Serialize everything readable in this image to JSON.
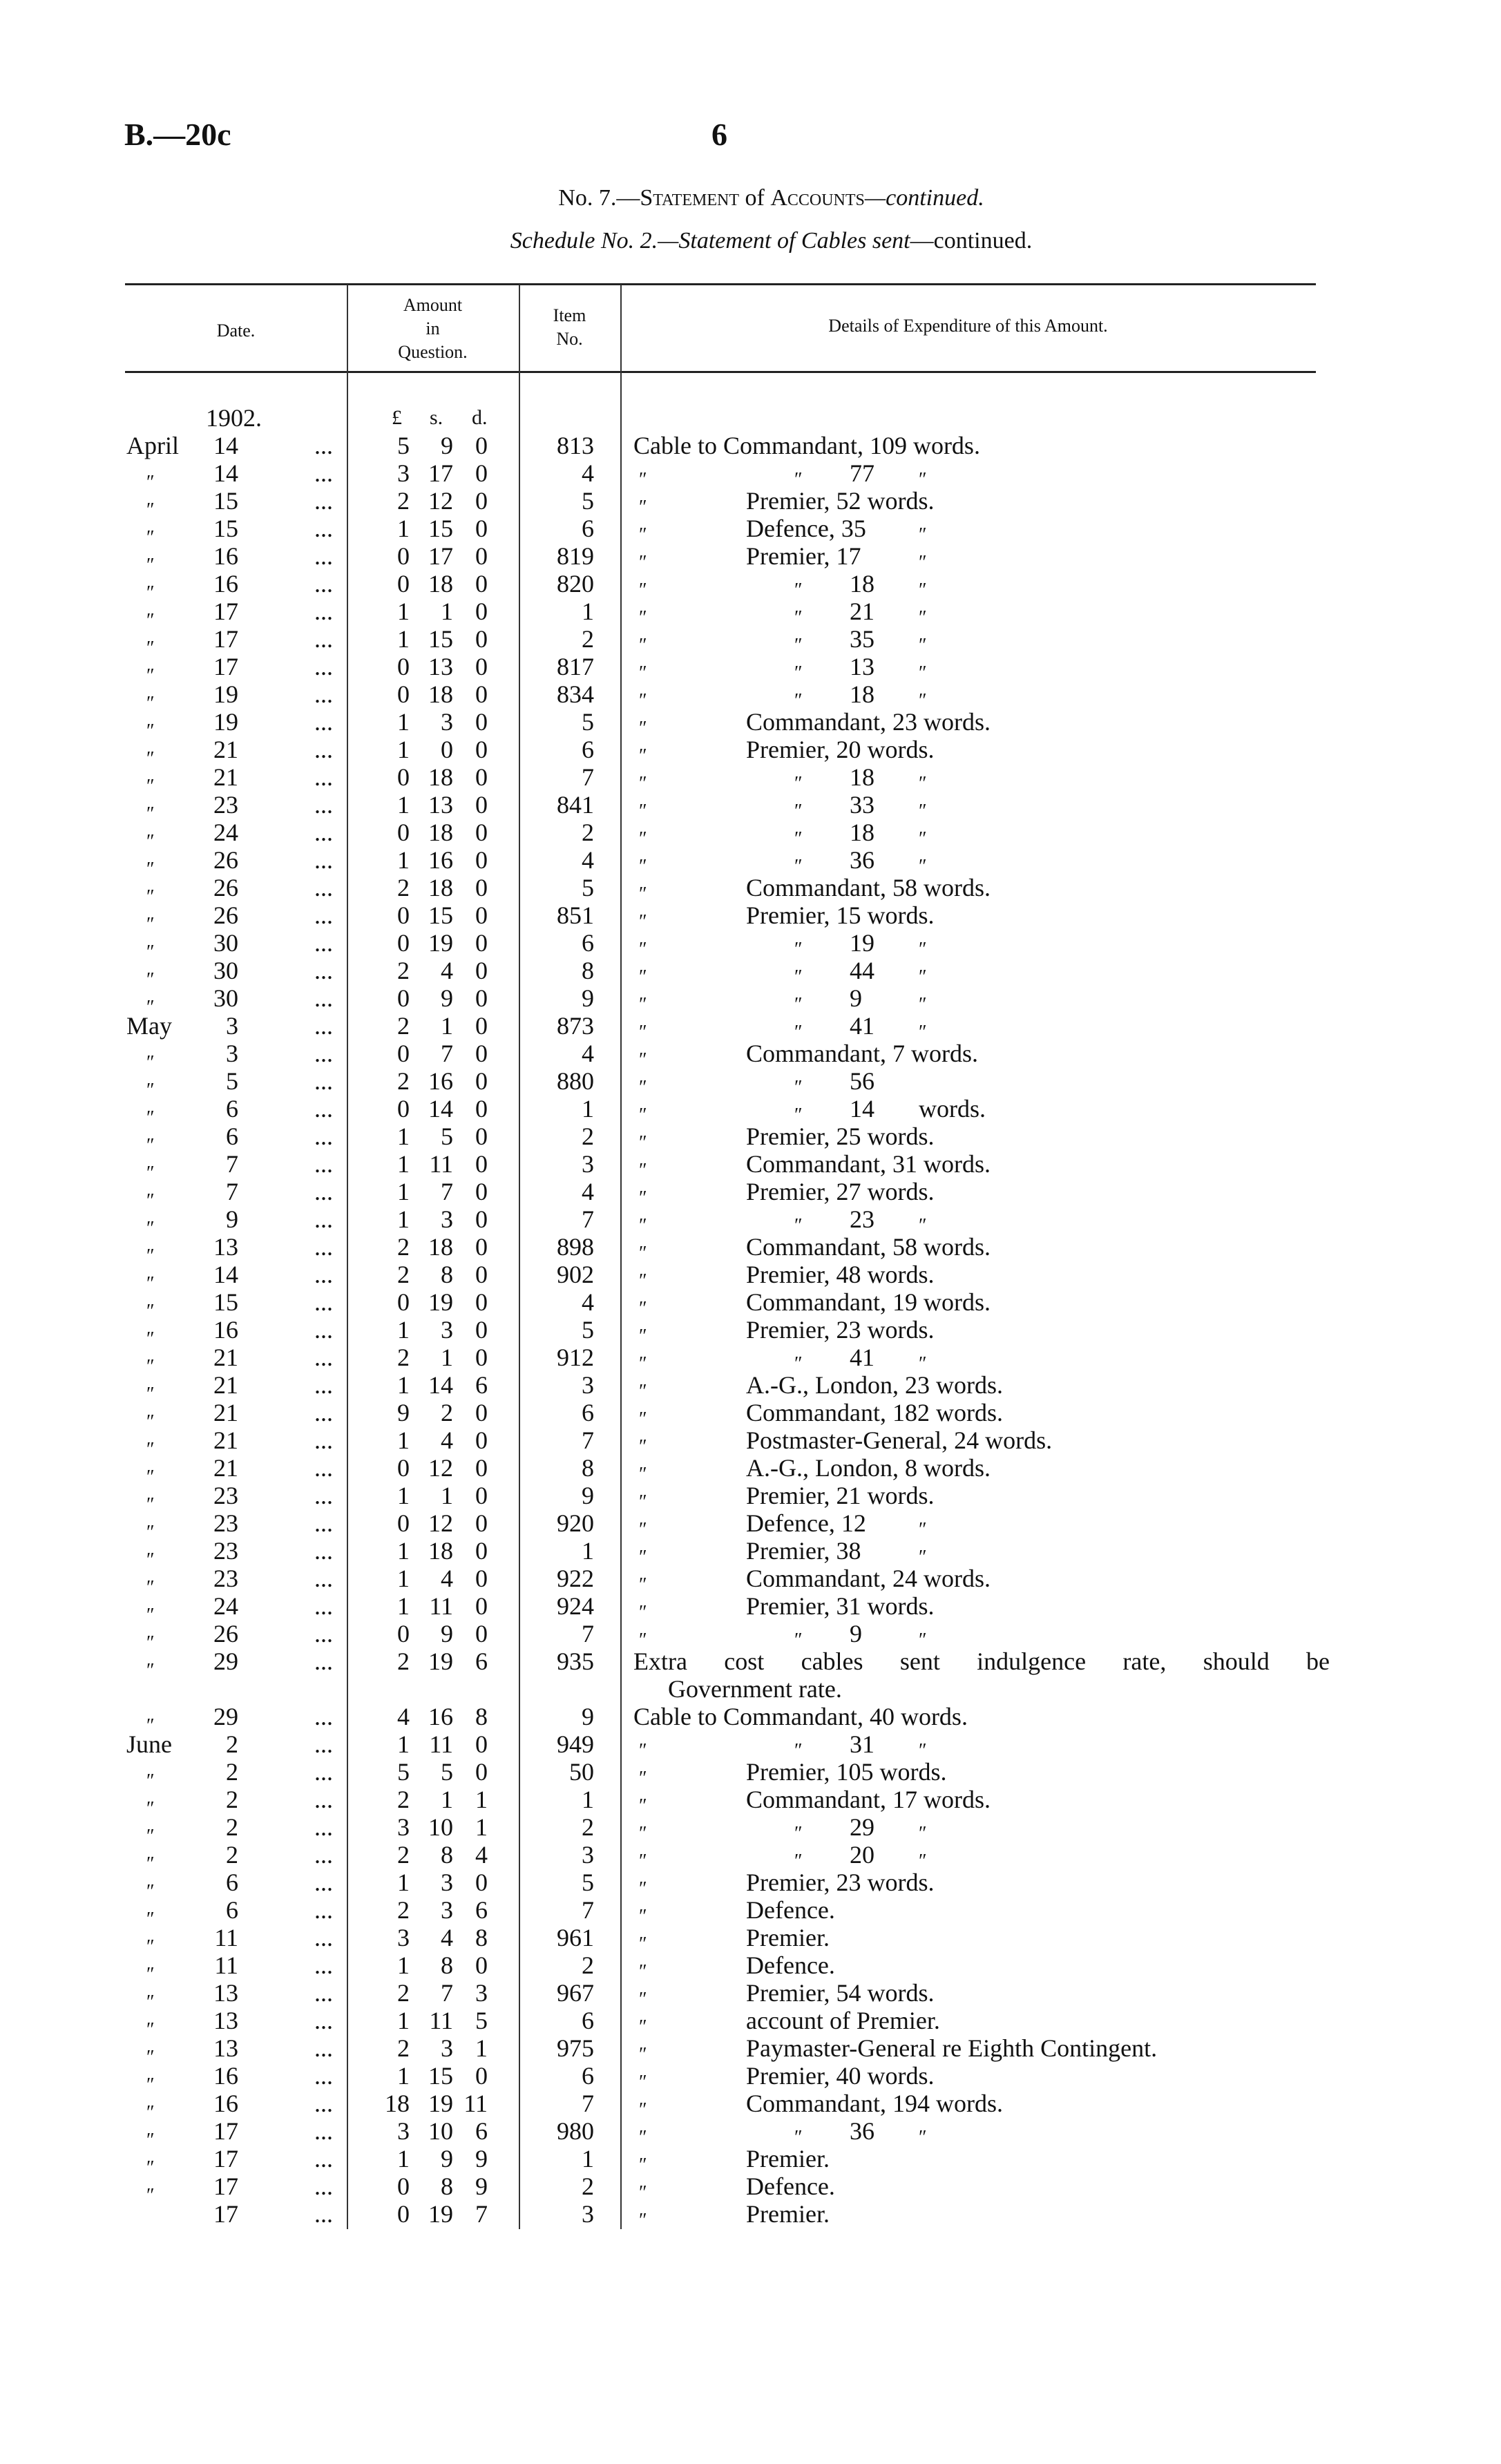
{
  "header": {
    "doc_code": "B.—20c",
    "page_number": "6",
    "title_prefix": "No. 7.—",
    "title_small_caps_1": "Statement",
    "title_of": " of ",
    "title_small_caps_2": "Accounts",
    "title_suffix": "—continued.",
    "subtitle_italic": "Schedule No. 2.—Statement of Cables sent",
    "subtitle_suffix": "—continued."
  },
  "columns": {
    "date": "Date.",
    "amount": [
      "Amount",
      "in",
      "Question."
    ],
    "item": [
      "Item",
      "No."
    ],
    "details": "Details of Expenditure of this Amount."
  },
  "subheader": {
    "year": "1902.",
    "pounds": "£",
    "shillings": "s.",
    "pence": "d."
  },
  "leader": "...",
  "ditto": "″",
  "rows": [
    {
      "month": "April",
      "day": "14",
      "l": "5",
      "s": "9",
      "d": "0",
      "item": "813",
      "full": "Cable to Commandant, 109 words."
    },
    {
      "month": "″",
      "day": "14",
      "l": "3",
      "s": "17",
      "d": "0",
      "item": "4",
      "q": "″",
      "q2": "″",
      "num": "77",
      "end": "″"
    },
    {
      "month": "″",
      "day": "15",
      "l": "2",
      "s": "12",
      "d": "0",
      "item": "5",
      "q": "″",
      "text": "Premier, 52 words."
    },
    {
      "month": "″",
      "day": "15",
      "l": "1",
      "s": "15",
      "d": "0",
      "item": "6",
      "q": "″",
      "text": "Defence, 35",
      "end": "″"
    },
    {
      "month": "″",
      "day": "16",
      "l": "0",
      "s": "17",
      "d": "0",
      "item": "819",
      "q": "″",
      "text": "Premier, 17",
      "end": "″"
    },
    {
      "month": "″",
      "day": "16",
      "l": "0",
      "s": "18",
      "d": "0",
      "item": "820",
      "q": "″",
      "q2": "″",
      "num": "18",
      "end": "″"
    },
    {
      "month": "″",
      "day": "17",
      "l": "1",
      "s": "1",
      "d": "0",
      "item": "1",
      "q": "″",
      "q2": "″",
      "num": "21",
      "end": "″"
    },
    {
      "month": "″",
      "day": "17",
      "l": "1",
      "s": "15",
      "d": "0",
      "item": "2",
      "q": "″",
      "q2": "″",
      "num": "35",
      "end": "″"
    },
    {
      "month": "″",
      "day": "17",
      "l": "0",
      "s": "13",
      "d": "0",
      "item": "817",
      "q": "″",
      "q2": "″",
      "num": "13",
      "end": "″"
    },
    {
      "month": "″",
      "day": "19",
      "l": "0",
      "s": "18",
      "d": "0",
      "item": "834",
      "q": "″",
      "q2": "″",
      "num": "18",
      "end": "″"
    },
    {
      "month": "″",
      "day": "19",
      "l": "1",
      "s": "3",
      "d": "0",
      "item": "5",
      "q": "″",
      "text": "Commandant, 23 words."
    },
    {
      "month": "″",
      "day": "21",
      "l": "1",
      "s": "0",
      "d": "0",
      "item": "6",
      "q": "″",
      "text": "Premier, 20 words."
    },
    {
      "month": "″",
      "day": "21",
      "l": "0",
      "s": "18",
      "d": "0",
      "item": "7",
      "q": "″",
      "q2": "″",
      "num": "18",
      "end": "″"
    },
    {
      "month": "″",
      "day": "23",
      "l": "1",
      "s": "13",
      "d": "0",
      "item": "841",
      "q": "″",
      "q2": "″",
      "num": "33",
      "end": "″"
    },
    {
      "month": "″",
      "day": "24",
      "l": "0",
      "s": "18",
      "d": "0",
      "item": "2",
      "q": "″",
      "q2": "″",
      "num": "18",
      "end": "″"
    },
    {
      "month": "″",
      "day": "26",
      "l": "1",
      "s": "16",
      "d": "0",
      "item": "4",
      "q": "″",
      "q2": "″",
      "num": "36",
      "end": "″"
    },
    {
      "month": "″",
      "day": "26",
      "l": "2",
      "s": "18",
      "d": "0",
      "item": "5",
      "q": "″",
      "text": "Commandant, 58 words."
    },
    {
      "month": "″",
      "day": "26",
      "l": "0",
      "s": "15",
      "d": "0",
      "item": "851",
      "q": "″",
      "text": "Premier, 15 words."
    },
    {
      "month": "″",
      "day": "30",
      "l": "0",
      "s": "19",
      "d": "0",
      "item": "6",
      "q": "″",
      "q2": "″",
      "num": "19",
      "end": "″"
    },
    {
      "month": "″",
      "day": "30",
      "l": "2",
      "s": "4",
      "d": "0",
      "item": "8",
      "q": "″",
      "q2": "″",
      "num": "44",
      "end": "″"
    },
    {
      "month": "″",
      "day": "30",
      "l": "0",
      "s": "9",
      "d": "0",
      "item": "9",
      "q": "″",
      "q2": "″",
      "num": "9",
      "end": "″"
    },
    {
      "month": "May",
      "day": "3",
      "l": "2",
      "s": "1",
      "d": "0",
      "item": "873",
      "q": "″",
      "q2": "″",
      "num": "41",
      "end": "″"
    },
    {
      "month": "″",
      "day": "3",
      "l": "0",
      "s": "7",
      "d": "0",
      "item": "4",
      "q": "″",
      "text": "Commandant, 7 words."
    },
    {
      "month": "″",
      "day": "5",
      "l": "2",
      "s": "16",
      "d": "0",
      "item": "880",
      "q": "″",
      "q2": "″",
      "num": "56"
    },
    {
      "month": "″",
      "day": "6",
      "l": "0",
      "s": "14",
      "d": "0",
      "item": "1",
      "q": "″",
      "q2": "″",
      "num": "14",
      "end": "words."
    },
    {
      "month": "″",
      "day": "6",
      "l": "1",
      "s": "5",
      "d": "0",
      "item": "2",
      "q": "″",
      "text": "Premier, 25 words."
    },
    {
      "month": "″",
      "day": "7",
      "l": "1",
      "s": "11",
      "d": "0",
      "item": "3",
      "q": "″",
      "text": "Commandant, 31 words."
    },
    {
      "month": "″",
      "day": "7",
      "l": "1",
      "s": "7",
      "d": "0",
      "item": "4",
      "q": "″",
      "text": "Premier, 27 words."
    },
    {
      "month": "″",
      "day": "9",
      "l": "1",
      "s": "3",
      "d": "0",
      "item": "7",
      "q": "″",
      "q2": "″",
      "num": "23",
      "end": "″"
    },
    {
      "month": "″",
      "day": "13",
      "l": "2",
      "s": "18",
      "d": "0",
      "item": "898",
      "q": "″",
      "text": "Commandant, 58 words."
    },
    {
      "month": "″",
      "day": "14",
      "l": "2",
      "s": "8",
      "d": "0",
      "item": "902",
      "q": "″",
      "text": "Premier, 48 words."
    },
    {
      "month": "″",
      "day": "15",
      "l": "0",
      "s": "19",
      "d": "0",
      "item": "4",
      "q": "″",
      "text": "Commandant, 19 words."
    },
    {
      "month": "″",
      "day": "16",
      "l": "1",
      "s": "3",
      "d": "0",
      "item": "5",
      "q": "″",
      "text": "Premier, 23 words."
    },
    {
      "month": "″",
      "day": "21",
      "l": "2",
      "s": "1",
      "d": "0",
      "item": "912",
      "q": "″",
      "q2": "″",
      "num": "41",
      "end": "″"
    },
    {
      "month": "″",
      "day": "21",
      "l": "1",
      "s": "14",
      "d": "6",
      "item": "3",
      "q": "″",
      "text": "A.-G., London, 23 words."
    },
    {
      "month": "″",
      "day": "21",
      "l": "9",
      "s": "2",
      "d": "0",
      "item": "6",
      "q": "″",
      "text": "Commandant, 182 words."
    },
    {
      "month": "″",
      "day": "21",
      "l": "1",
      "s": "4",
      "d": "0",
      "item": "7",
      "q": "″",
      "text": "Postmaster-General, 24 words."
    },
    {
      "month": "″",
      "day": "21",
      "l": "0",
      "s": "12",
      "d": "0",
      "item": "8",
      "q": "″",
      "text": "A.-G., London, 8 words."
    },
    {
      "month": "″",
      "day": "23",
      "l": "1",
      "s": "1",
      "d": "0",
      "item": "9",
      "q": "″",
      "text": "Premier, 21 words."
    },
    {
      "month": "″",
      "day": "23",
      "l": "0",
      "s": "12",
      "d": "0",
      "item": "920",
      "q": "″",
      "text": "Defence, 12",
      "end": "″"
    },
    {
      "month": "″",
      "day": "23",
      "l": "1",
      "s": "18",
      "d": "0",
      "item": "1",
      "q": "″",
      "text": "Premier, 38",
      "end": "″"
    },
    {
      "month": "″",
      "day": "23",
      "l": "1",
      "s": "4",
      "d": "0",
      "item": "922",
      "q": "″",
      "text": "Commandant, 24 words."
    },
    {
      "month": "″",
      "day": "24",
      "l": "1",
      "s": "11",
      "d": "0",
      "item": "924",
      "q": "″",
      "text": "Premier, 31 words."
    },
    {
      "month": "″",
      "day": "26",
      "l": "0",
      "s": "9",
      "d": "0",
      "item": "7",
      "q": "″",
      "q2": "″",
      "num": "9",
      "end": "″"
    },
    {
      "month": "″",
      "day": "29",
      "l": "2",
      "s": "19",
      "d": "6",
      "item": "935",
      "full": "Extra cost cables sent indulgence rate, should be",
      "cont": "Government rate."
    },
    {
      "month": "″",
      "day": "29",
      "l": "4",
      "s": "16",
      "d": "8",
      "item": "9",
      "full": "Cable to Commandant, 40 words."
    },
    {
      "month": "June",
      "day": "2",
      "l": "1",
      "s": "11",
      "d": "0",
      "item": "949",
      "q": "″",
      "q2": "″",
      "num": "31",
      "end": "″"
    },
    {
      "month": "″",
      "day": "2",
      "l": "5",
      "s": "5",
      "d": "0",
      "item": "50",
      "q": "″",
      "text": "Premier, 105 words."
    },
    {
      "month": "″",
      "day": "2",
      "l": "2",
      "s": "1",
      "d": "1",
      "item": "1",
      "q": "″",
      "text": "Commandant, 17 words."
    },
    {
      "month": "″",
      "day": "2",
      "l": "3",
      "s": "10",
      "d": "1",
      "item": "2",
      "q": "″",
      "q2": "″",
      "num": "29",
      "end": "″"
    },
    {
      "month": "″",
      "day": "2",
      "l": "2",
      "s": "8",
      "d": "4",
      "item": "3",
      "q": "″",
      "q2": "″",
      "num": "20",
      "end": "″"
    },
    {
      "month": "″",
      "day": "6",
      "l": "1",
      "s": "3",
      "d": "0",
      "item": "5",
      "q": "″",
      "text": "Premier, 23 words."
    },
    {
      "month": "″",
      "day": "6",
      "l": "2",
      "s": "3",
      "d": "6",
      "item": "7",
      "q": "″",
      "text": "Defence."
    },
    {
      "month": "″",
      "day": "11",
      "l": "3",
      "s": "4",
      "d": "8",
      "item": "961",
      "q": "″",
      "text": "Premier."
    },
    {
      "month": "″",
      "day": "11",
      "l": "1",
      "s": "8",
      "d": "0",
      "item": "2",
      "q": "″",
      "text": "Defence."
    },
    {
      "month": "″",
      "day": "13",
      "l": "2",
      "s": "7",
      "d": "3",
      "item": "967",
      "q": "″",
      "text": "Premier, 54 words."
    },
    {
      "month": "″",
      "day": "13",
      "l": "1",
      "s": "11",
      "d": "5",
      "item": "6",
      "q": "″",
      "text": "account of Premier."
    },
    {
      "month": "″",
      "day": "13",
      "l": "2",
      "s": "3",
      "d": "1",
      "item": "975",
      "q": "″",
      "text": "Paymaster-General re Eighth Contingent."
    },
    {
      "month": "″",
      "day": "16",
      "l": "1",
      "s": "15",
      "d": "0",
      "item": "6",
      "q": "″",
      "text": "Premier, 40 words."
    },
    {
      "month": "″",
      "day": "16",
      "l": "18",
      "s": "19",
      "d": "11",
      "item": "7",
      "q": "″",
      "text": "Commandant, 194 words."
    },
    {
      "month": "″",
      "day": "17",
      "l": "3",
      "s": "10",
      "d": "6",
      "item": "980",
      "q": "″",
      "q2": "″",
      "num": "36",
      "end": "″"
    },
    {
      "month": "″",
      "day": "17",
      "l": "1",
      "s": "9",
      "d": "9",
      "item": "1",
      "q": "″",
      "text": "Premier."
    },
    {
      "month": "″",
      "day": "17",
      "l": "0",
      "s": "8",
      "d": "9",
      "item": "2",
      "q": "″",
      "text": "Defence."
    },
    {
      "month": "",
      "day": "17",
      "l": "0",
      "s": "19",
      "d": "7",
      "item": "3",
      "q": "″",
      "text": "Premier."
    }
  ]
}
